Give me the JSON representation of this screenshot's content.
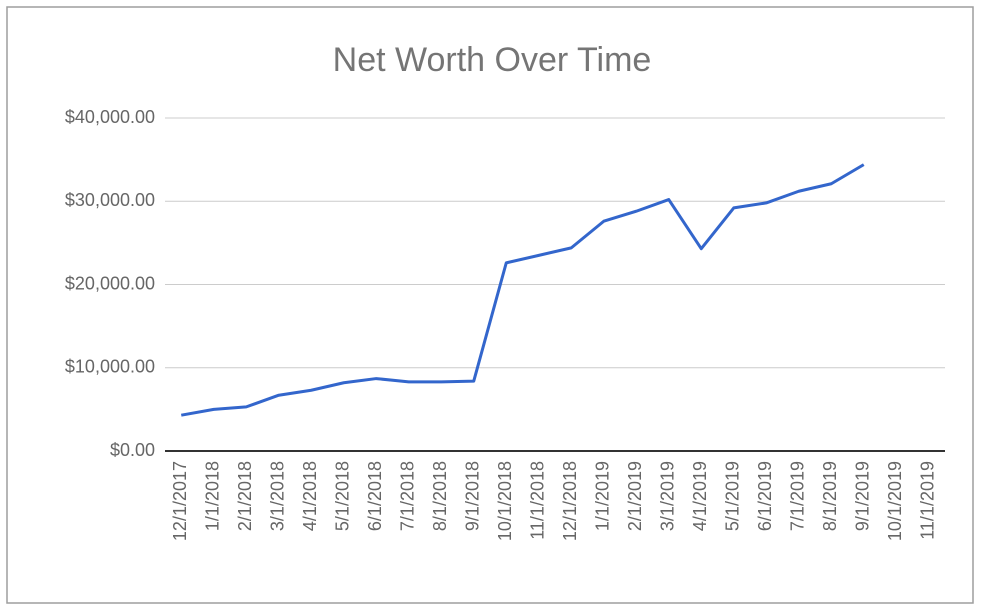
{
  "chart_data": {
    "type": "line",
    "title": "Net Worth Over Time",
    "categories": [
      "12/1/2017",
      "1/1/2018",
      "2/1/2018",
      "3/1/2018",
      "4/1/2018",
      "5/1/2018",
      "6/1/2018",
      "7/1/2018",
      "8/1/2018",
      "9/1/2018",
      "10/1/2018",
      "11/1/2018",
      "12/1/2018",
      "1/1/2019",
      "2/1/2019",
      "3/1/2019",
      "4/1/2019",
      "5/1/2019",
      "6/1/2019",
      "7/1/2019",
      "8/1/2019",
      "9/1/2019",
      "10/1/2019",
      "11/1/2019"
    ],
    "values": [
      4300,
      5000,
      5300,
      6700,
      7300,
      8200,
      8700,
      8300,
      8300,
      8400,
      22600,
      23500,
      24400,
      27600,
      28800,
      30200,
      24300,
      29200,
      29800,
      31200,
      32100,
      34400,
      null,
      null
    ],
    "color": "#3366cc",
    "ylim": [
      0,
      40000
    ],
    "yticks": [
      {
        "value": 0,
        "label": "$0.00"
      },
      {
        "value": 10000,
        "label": "$10,000.00"
      },
      {
        "value": 20000,
        "label": "$20,000.00"
      },
      {
        "value": 30000,
        "label": "$30,000.00"
      },
      {
        "value": 40000,
        "label": "$40,000.00"
      }
    ],
    "grid": true
  }
}
